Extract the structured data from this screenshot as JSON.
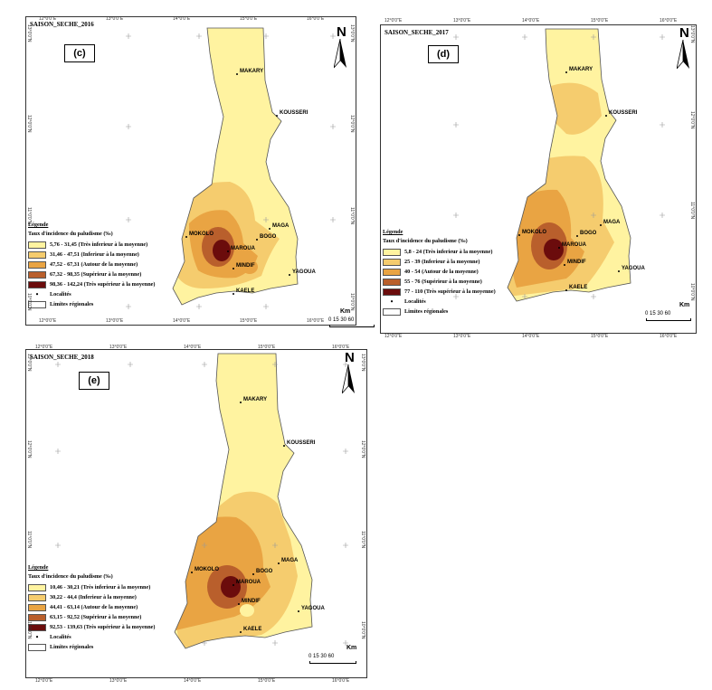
{
  "panels": [
    {
      "id": "c",
      "title": "SAISON_SECHE_2016",
      "tag": "(c)",
      "coords_top": [
        "12°0'0\"E",
        "13°0'0\"E",
        "14°0'0\"E",
        "15°0'0\"E",
        "16°0'0\"E"
      ],
      "coords_bottom": [
        "12°0'0\"E",
        "13°0'0\"E",
        "14°0'0\"E",
        "15°0'0\"E",
        "16°0'0\"E"
      ],
      "coords_side": [
        "13°0'0\"N",
        "12°0'0\"N",
        "11°0'0\"N",
        "10°0'0\"N"
      ],
      "legend_heading": "Légende",
      "legend_title": "Taux d'incidence du paludisme (‰)",
      "classes": [
        {
          "label": "5,76 - 31,45 (Très inferieur à la moyenne)",
          "color": "#fff3a0"
        },
        {
          "label": "31,46 - 47,51 (Inferieur à la moyenne)",
          "color": "#f5cc6e"
        },
        {
          "label": "47,52 - 67,31 (Autour de la moyenne)",
          "color": "#e9a443"
        },
        {
          "label": "67,32 - 98,35 (Supérieur à la moyenne)",
          "color": "#b95f2c"
        },
        {
          "label": "98,36 - 142,24 (Très supérieur à la moyenne)",
          "color": "#6b0c0c"
        }
      ],
      "localites_label": "Localités",
      "limites_label": "Limites régionales",
      "scale_unit": "Km",
      "scale_ticks": "0  15  30        60"
    },
    {
      "id": "d",
      "title": "SAISON_SECHE_2017",
      "tag": "(d)",
      "coords_top": [
        "12°0'0\"E",
        "13°0'0\"E",
        "14°0'0\"E",
        "15°0'0\"E",
        "16°0'0\"E"
      ],
      "coords_bottom": [
        "12°0'0\"E",
        "13°0'0\"E",
        "14°0'0\"E",
        "15°0'0\"E",
        "16°0'0\"E"
      ],
      "coords_side": [
        "13°0'0\"N",
        "12°0'0\"N",
        "11°0'0\"N",
        "10°0'0\"N"
      ],
      "legend_heading": "Légende",
      "legend_title": "Taux d'incidence du paludisme (‰)",
      "classes": [
        {
          "label": "5,8 - 24 (Très inferieur à la moyenne)",
          "color": "#fff3a0"
        },
        {
          "label": "25 - 39 (Inferieur à la moyenne)",
          "color": "#f5cc6e"
        },
        {
          "label": "40 - 54 (Autour de la moyenne)",
          "color": "#e9a443"
        },
        {
          "label": "55 - 76 (Supérieur à la moyenne)",
          "color": "#b95f2c"
        },
        {
          "label": "77 - 110 (Très supérieur à la moyenne)",
          "color": "#6b0c0c"
        }
      ],
      "localites_label": "Localités",
      "limites_label": "Limites régionales",
      "scale_unit": "Km",
      "scale_ticks": "0  15  30        60"
    },
    {
      "id": "e",
      "title": "SAISON_SECHE_2018",
      "tag": "(e)",
      "coords_top": [
        "12°0'0\"E",
        "13°0'0\"E",
        "14°0'0\"E",
        "15°0'0\"E",
        "16°0'0\"E"
      ],
      "coords_bottom": [
        "12°0'0\"E",
        "13°0'0\"E",
        "14°0'0\"E",
        "15°0'0\"E",
        "16°0'0\"E"
      ],
      "coords_side": [
        "13°0'0\"N",
        "12°0'0\"N",
        "11°0'0\"N",
        "10°0'0\"N"
      ],
      "legend_heading": "Légende",
      "legend_title": "Taux d'incidence du paludisme (‰)",
      "classes": [
        {
          "label": "10,46 - 30,21 (Très inferieur à la moyenne)",
          "color": "#fff3a0"
        },
        {
          "label": "30,22 - 44,4 (Inferieur à la moyenne)",
          "color": "#f5cc6e"
        },
        {
          "label": "44,41 - 63,14 (Autour de la moyenne)",
          "color": "#e9a443"
        },
        {
          "label": "63,15 - 92,52 (Supérieur à la moyenne)",
          "color": "#b95f2c"
        },
        {
          "label": "92,53 - 139,63 (Très supérieur à la moyenne)",
          "color": "#6b0c0c"
        }
      ],
      "localites_label": "Localités",
      "limites_label": "Limites régionales",
      "scale_unit": "Km",
      "scale_ticks": "0  15  30        60"
    }
  ],
  "north_label": "N",
  "localites_symbol": "•",
  "cities": {
    "makary": "MAKARY",
    "kousseri": "KOUSSERI",
    "mokolo": "MOKOLO",
    "maroua": "MAROUA",
    "bogo": "BOGO",
    "maga": "MAGA",
    "mindif": "MINDIF",
    "yagoua": "YAGOUA",
    "kaele": "KAELE"
  }
}
